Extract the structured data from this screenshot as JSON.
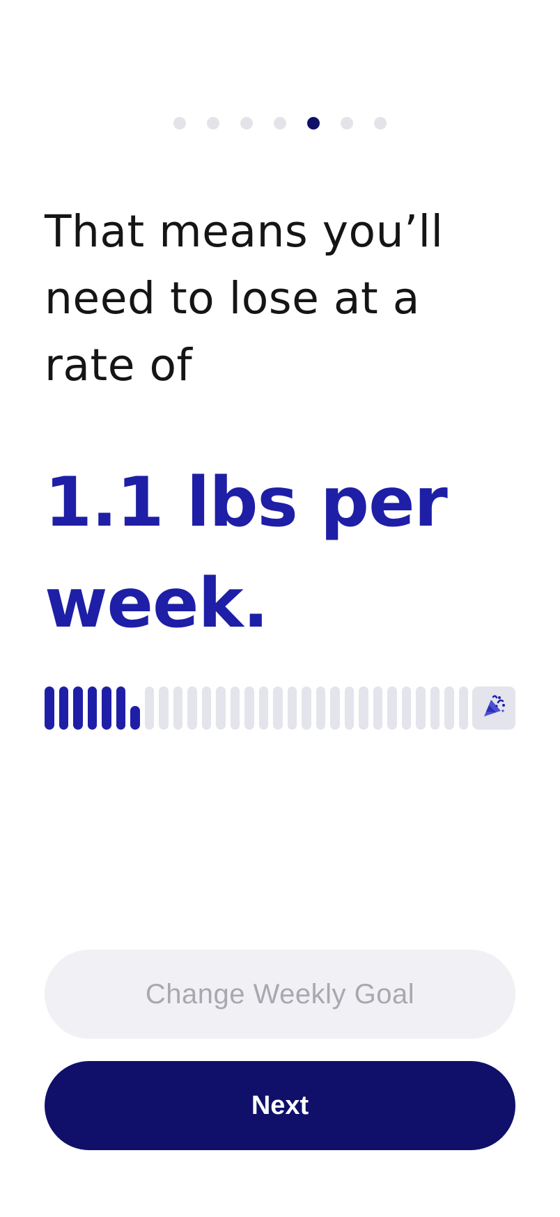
{
  "onboarding": {
    "steps_total": 7,
    "current_step": 5
  },
  "content": {
    "intro_text": "That means you’ll need to lose at a rate of",
    "rate_text": "1.1 lbs per week."
  },
  "progress": {
    "filled_bars": 7,
    "total_bars": 30,
    "last_filled_fraction": 0.55,
    "goal_icon": "party-popper-icon"
  },
  "actions": {
    "secondary_label": "Change Weekly Goal",
    "primary_label": "Next"
  },
  "colors": {
    "accent": "#1e1fa6",
    "primary_button": "#10106b",
    "inactive": "#e3e4ec",
    "secondary_button_bg": "#f1f1f5",
    "secondary_button_text": "#a8a8ae"
  }
}
